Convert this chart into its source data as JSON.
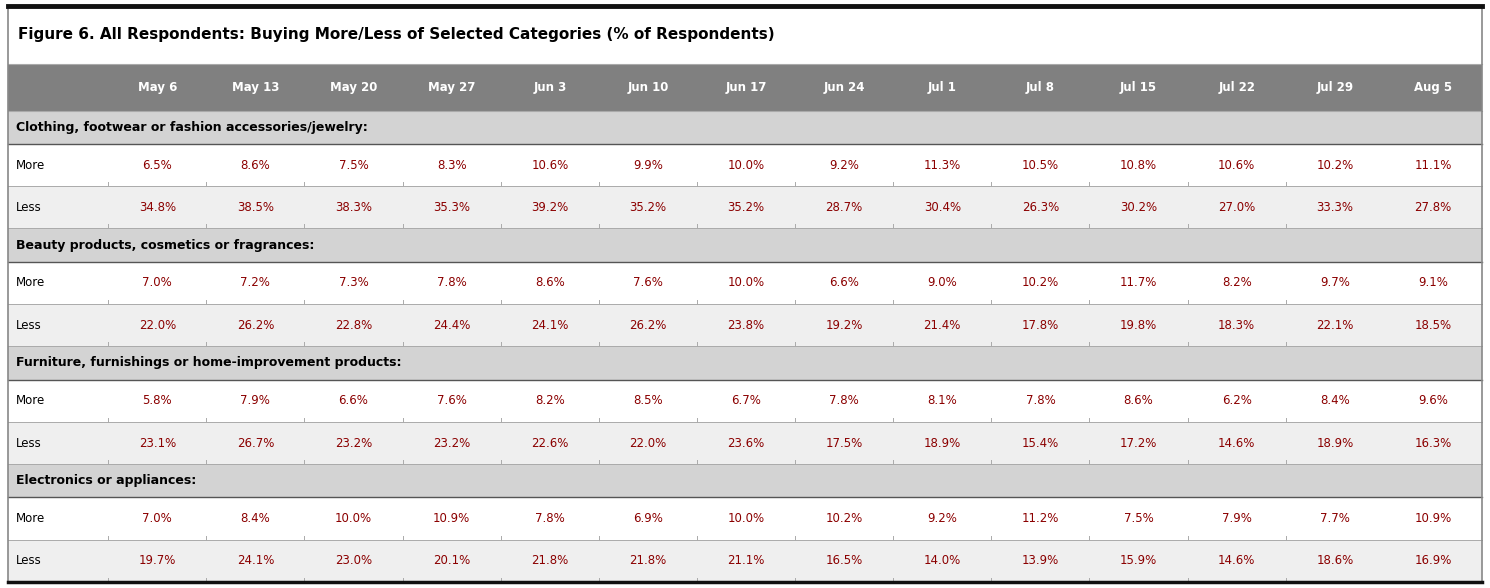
{
  "title": "Figure 6. All Respondents: Buying More/Less of Selected Categories (% of Respondents)",
  "columns": [
    "",
    "May 6",
    "May 13",
    "May 20",
    "May 27",
    "Jun 3",
    "Jun 10",
    "Jun 17",
    "Jun 24",
    "Jul 1",
    "Jul 8",
    "Jul 15",
    "Jul 22",
    "Jul 29",
    "Aug 5"
  ],
  "sections": [
    {
      "header": "Clothing, footwear or fashion accessories/jewelry:",
      "rows": [
        {
          "label": "More",
          "values": [
            "6.5%",
            "8.6%",
            "7.5%",
            "8.3%",
            "10.6%",
            "9.9%",
            "10.0%",
            "9.2%",
            "11.3%",
            "10.5%",
            "10.8%",
            "10.6%",
            "10.2%",
            "11.1%"
          ]
        },
        {
          "label": "Less",
          "values": [
            "34.8%",
            "38.5%",
            "38.3%",
            "35.3%",
            "39.2%",
            "35.2%",
            "35.2%",
            "28.7%",
            "30.4%",
            "26.3%",
            "30.2%",
            "27.0%",
            "33.3%",
            "27.8%"
          ]
        }
      ]
    },
    {
      "header": "Beauty products, cosmetics or fragrances:",
      "rows": [
        {
          "label": "More",
          "values": [
            "7.0%",
            "7.2%",
            "7.3%",
            "7.8%",
            "8.6%",
            "7.6%",
            "10.0%",
            "6.6%",
            "9.0%",
            "10.2%",
            "11.7%",
            "8.2%",
            "9.7%",
            "9.1%"
          ]
        },
        {
          "label": "Less",
          "values": [
            "22.0%",
            "26.2%",
            "22.8%",
            "24.4%",
            "24.1%",
            "26.2%",
            "23.8%",
            "19.2%",
            "21.4%",
            "17.8%",
            "19.8%",
            "18.3%",
            "22.1%",
            "18.5%"
          ]
        }
      ]
    },
    {
      "header": "Furniture, furnishings or home-improvement products:",
      "rows": [
        {
          "label": "More",
          "values": [
            "5.8%",
            "7.9%",
            "6.6%",
            "7.6%",
            "8.2%",
            "8.5%",
            "6.7%",
            "7.8%",
            "8.1%",
            "7.8%",
            "8.6%",
            "6.2%",
            "8.4%",
            "9.6%"
          ]
        },
        {
          "label": "Less",
          "values": [
            "23.1%",
            "26.7%",
            "23.2%",
            "23.2%",
            "22.6%",
            "22.0%",
            "23.6%",
            "17.5%",
            "18.9%",
            "15.4%",
            "17.2%",
            "14.6%",
            "18.9%",
            "16.3%"
          ]
        }
      ]
    },
    {
      "header": "Electronics or appliances:",
      "rows": [
        {
          "label": "More",
          "values": [
            "7.0%",
            "8.4%",
            "10.0%",
            "10.9%",
            "7.8%",
            "6.9%",
            "10.0%",
            "10.2%",
            "9.2%",
            "11.2%",
            "7.5%",
            "7.9%",
            "7.7%",
            "10.9%"
          ]
        },
        {
          "label": "Less",
          "values": [
            "19.7%",
            "24.1%",
            "23.0%",
            "20.1%",
            "21.8%",
            "21.8%",
            "21.1%",
            "16.5%",
            "14.0%",
            "13.9%",
            "15.9%",
            "14.6%",
            "18.6%",
            "16.9%"
          ]
        }
      ]
    }
  ],
  "header_bg": "#808080",
  "header_text": "#ffffff",
  "section_header_bg": "#d3d3d3",
  "section_header_text": "#000000",
  "row_bg_more": "#ffffff",
  "row_bg_less": "#efefef",
  "data_text_color": "#8B0000",
  "label_text_color": "#000000",
  "title_bg": "#ffffff",
  "title_text_color": "#000000",
  "top_border_color": "#000000",
  "inner_border_color": "#aaaaaa",
  "outer_border_color": "#888888",
  "section_border_color": "#555555"
}
